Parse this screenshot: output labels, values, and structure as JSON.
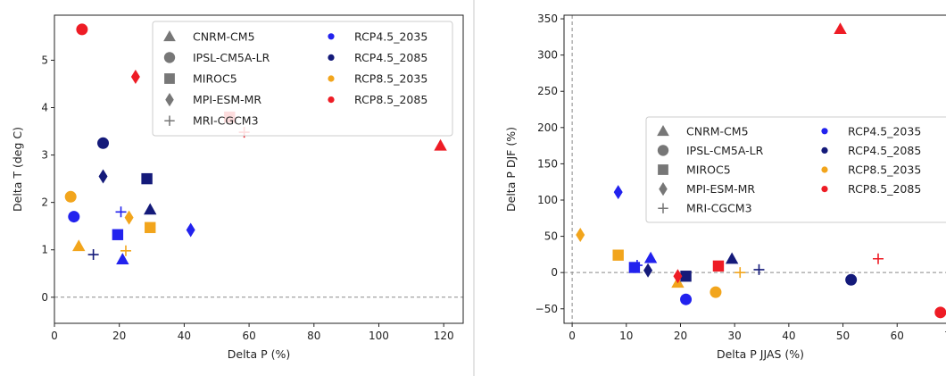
{
  "colors": {
    "RCP4.5_2035": "#2222ee",
    "RCP4.5_2085": "#141a7a",
    "RCP8.5_2035": "#f2a51c",
    "RCP8.5_2085": "#ee1c25",
    "legend_marker": "#777777",
    "zero_line": "#8a8a8a",
    "divider": "#c8c8c8"
  },
  "chart_data": [
    {
      "type": "scatter",
      "title": "",
      "xlabel": "Delta P (%)",
      "ylabel": "Delta T (deg C)",
      "xlim": [
        0,
        126
      ],
      "ylim": [
        -0.55,
        5.95
      ],
      "xticks": [
        0,
        20,
        40,
        60,
        80,
        100,
        120
      ],
      "yticks": [
        0,
        1,
        2,
        3,
        4,
        5
      ],
      "zero_lines": [
        "y"
      ],
      "grid": false,
      "legend_placement": "top-right",
      "marker_legend": [
        {
          "label": "CNRM-CM5",
          "marker": "triangle"
        },
        {
          "label": "IPSL-CM5A-LR",
          "marker": "circle"
        },
        {
          "label": "MIROC5",
          "marker": "square"
        },
        {
          "label": "MPI-ESM-MR",
          "marker": "diamond"
        },
        {
          "label": "MRI-CGCM3",
          "marker": "plus"
        }
      ],
      "color_legend": [
        {
          "label": "RCP4.5_2035",
          "color": "#2222ee"
        },
        {
          "label": "RCP4.5_2085",
          "color": "#141a7a"
        },
        {
          "label": "RCP8.5_2035",
          "color": "#f2a51c"
        },
        {
          "label": "RCP8.5_2085",
          "color": "#ee1c25"
        }
      ],
      "points": [
        {
          "model": "CNRM-CM5",
          "scenario": "RCP4.5_2035",
          "x": 21,
          "y": 0.8
        },
        {
          "model": "CNRM-CM5",
          "scenario": "RCP4.5_2085",
          "x": 29.5,
          "y": 1.85
        },
        {
          "model": "CNRM-CM5",
          "scenario": "RCP8.5_2035",
          "x": 7.5,
          "y": 1.08
        },
        {
          "model": "CNRM-CM5",
          "scenario": "RCP8.5_2085",
          "x": 119,
          "y": 3.2
        },
        {
          "model": "IPSL-CM5A-LR",
          "scenario": "RCP4.5_2035",
          "x": 6,
          "y": 1.7
        },
        {
          "model": "IPSL-CM5A-LR",
          "scenario": "RCP4.5_2085",
          "x": 15,
          "y": 3.25
        },
        {
          "model": "IPSL-CM5A-LR",
          "scenario": "RCP8.5_2035",
          "x": 5,
          "y": 2.12
        },
        {
          "model": "IPSL-CM5A-LR",
          "scenario": "RCP8.5_2085",
          "x": 8.5,
          "y": 5.65
        },
        {
          "model": "MIROC5",
          "scenario": "RCP4.5_2035",
          "x": 19.5,
          "y": 1.32
        },
        {
          "model": "MIROC5",
          "scenario": "RCP4.5_2085",
          "x": 28.5,
          "y": 2.5
        },
        {
          "model": "MIROC5",
          "scenario": "RCP8.5_2035",
          "x": 29.5,
          "y": 1.47
        },
        {
          "model": "MIROC5",
          "scenario": "RCP8.5_2085",
          "x": 54,
          "y": 3.8
        },
        {
          "model": "MPI-ESM-MR",
          "scenario": "RCP4.5_2035",
          "x": 42,
          "y": 1.42
        },
        {
          "model": "MPI-ESM-MR",
          "scenario": "RCP4.5_2085",
          "x": 15,
          "y": 2.55
        },
        {
          "model": "MPI-ESM-MR",
          "scenario": "RCP8.5_2035",
          "x": 23,
          "y": 1.68
        },
        {
          "model": "MPI-ESM-MR",
          "scenario": "RCP8.5_2085",
          "x": 25,
          "y": 4.65
        },
        {
          "model": "MRI-CGCM3",
          "scenario": "RCP4.5_2035",
          "x": 20.5,
          "y": 1.8
        },
        {
          "model": "MRI-CGCM3",
          "scenario": "RCP4.5_2085",
          "x": 12,
          "y": 0.9
        },
        {
          "model": "MRI-CGCM3",
          "scenario": "RCP8.5_2035",
          "x": 22,
          "y": 0.98
        },
        {
          "model": "MRI-CGCM3",
          "scenario": "RCP8.5_2085",
          "x": 58.5,
          "y": 3.48
        }
      ]
    },
    {
      "type": "scatter",
      "title": "",
      "xlabel": "Delta P JJAS (%)",
      "ylabel": "Delta P DJF (%)",
      "xlim": [
        -1.5,
        71
      ],
      "ylim": [
        -70,
        355
      ],
      "xticks": [
        0,
        10,
        20,
        30,
        40,
        50,
        60,
        70
      ],
      "yticks": [
        -50,
        0,
        50,
        100,
        150,
        200,
        250,
        300,
        350
      ],
      "zero_lines": [
        "x",
        "y"
      ],
      "grid": false,
      "legend_placement": "center-right",
      "marker_legend": [
        {
          "label": "CNRM-CM5",
          "marker": "triangle"
        },
        {
          "label": "IPSL-CM5A-LR",
          "marker": "circle"
        },
        {
          "label": "MIROC5",
          "marker": "square"
        },
        {
          "label": "MPI-ESM-MR",
          "marker": "diamond"
        },
        {
          "label": "MRI-CGCM3",
          "marker": "plus"
        }
      ],
      "color_legend": [
        {
          "label": "RCP4.5_2035",
          "color": "#2222ee"
        },
        {
          "label": "RCP4.5_2085",
          "color": "#141a7a"
        },
        {
          "label": "RCP8.5_2035",
          "color": "#f2a51c"
        },
        {
          "label": "RCP8.5_2085",
          "color": "#ee1c25"
        }
      ],
      "points": [
        {
          "model": "CNRM-CM5",
          "scenario": "RCP4.5_2035",
          "x": 14.5,
          "y": 20
        },
        {
          "model": "CNRM-CM5",
          "scenario": "RCP4.5_2085",
          "x": 29.5,
          "y": 19
        },
        {
          "model": "CNRM-CM5",
          "scenario": "RCP8.5_2035",
          "x": 19.5,
          "y": -14
        },
        {
          "model": "CNRM-CM5",
          "scenario": "RCP8.5_2085",
          "x": 49.5,
          "y": 336
        },
        {
          "model": "IPSL-CM5A-LR",
          "scenario": "RCP4.5_2035",
          "x": 21,
          "y": -37
        },
        {
          "model": "IPSL-CM5A-LR",
          "scenario": "RCP4.5_2085",
          "x": 51.5,
          "y": -10
        },
        {
          "model": "IPSL-CM5A-LR",
          "scenario": "RCP8.5_2035",
          "x": 26.5,
          "y": -27
        },
        {
          "model": "IPSL-CM5A-LR",
          "scenario": "RCP8.5_2085",
          "x": 68,
          "y": -55
        },
        {
          "model": "MIROC5",
          "scenario": "RCP4.5_2035",
          "x": 11.5,
          "y": 7
        },
        {
          "model": "MIROC5",
          "scenario": "RCP4.5_2085",
          "x": 21,
          "y": -5
        },
        {
          "model": "MIROC5",
          "scenario": "RCP8.5_2035",
          "x": 8.5,
          "y": 24
        },
        {
          "model": "MIROC5",
          "scenario": "RCP8.5_2085",
          "x": 27,
          "y": 9
        },
        {
          "model": "MPI-ESM-MR",
          "scenario": "RCP4.5_2035",
          "x": 8.5,
          "y": 111
        },
        {
          "model": "MPI-ESM-MR",
          "scenario": "RCP4.5_2085",
          "x": 14,
          "y": 3
        },
        {
          "model": "MPI-ESM-MR",
          "scenario": "RCP8.5_2035",
          "x": 1.5,
          "y": 52
        },
        {
          "model": "MPI-ESM-MR",
          "scenario": "RCP8.5_2085",
          "x": 19.5,
          "y": -5
        },
        {
          "model": "MRI-CGCM3",
          "scenario": "RCP4.5_2035",
          "x": 12,
          "y": 10
        },
        {
          "model": "MRI-CGCM3",
          "scenario": "RCP4.5_2085",
          "x": 34.5,
          "y": 4
        },
        {
          "model": "MRI-CGCM3",
          "scenario": "RCP8.5_2035",
          "x": 31,
          "y": 0
        },
        {
          "model": "MRI-CGCM3",
          "scenario": "RCP8.5_2085",
          "x": 56.5,
          "y": 19
        }
      ]
    }
  ]
}
